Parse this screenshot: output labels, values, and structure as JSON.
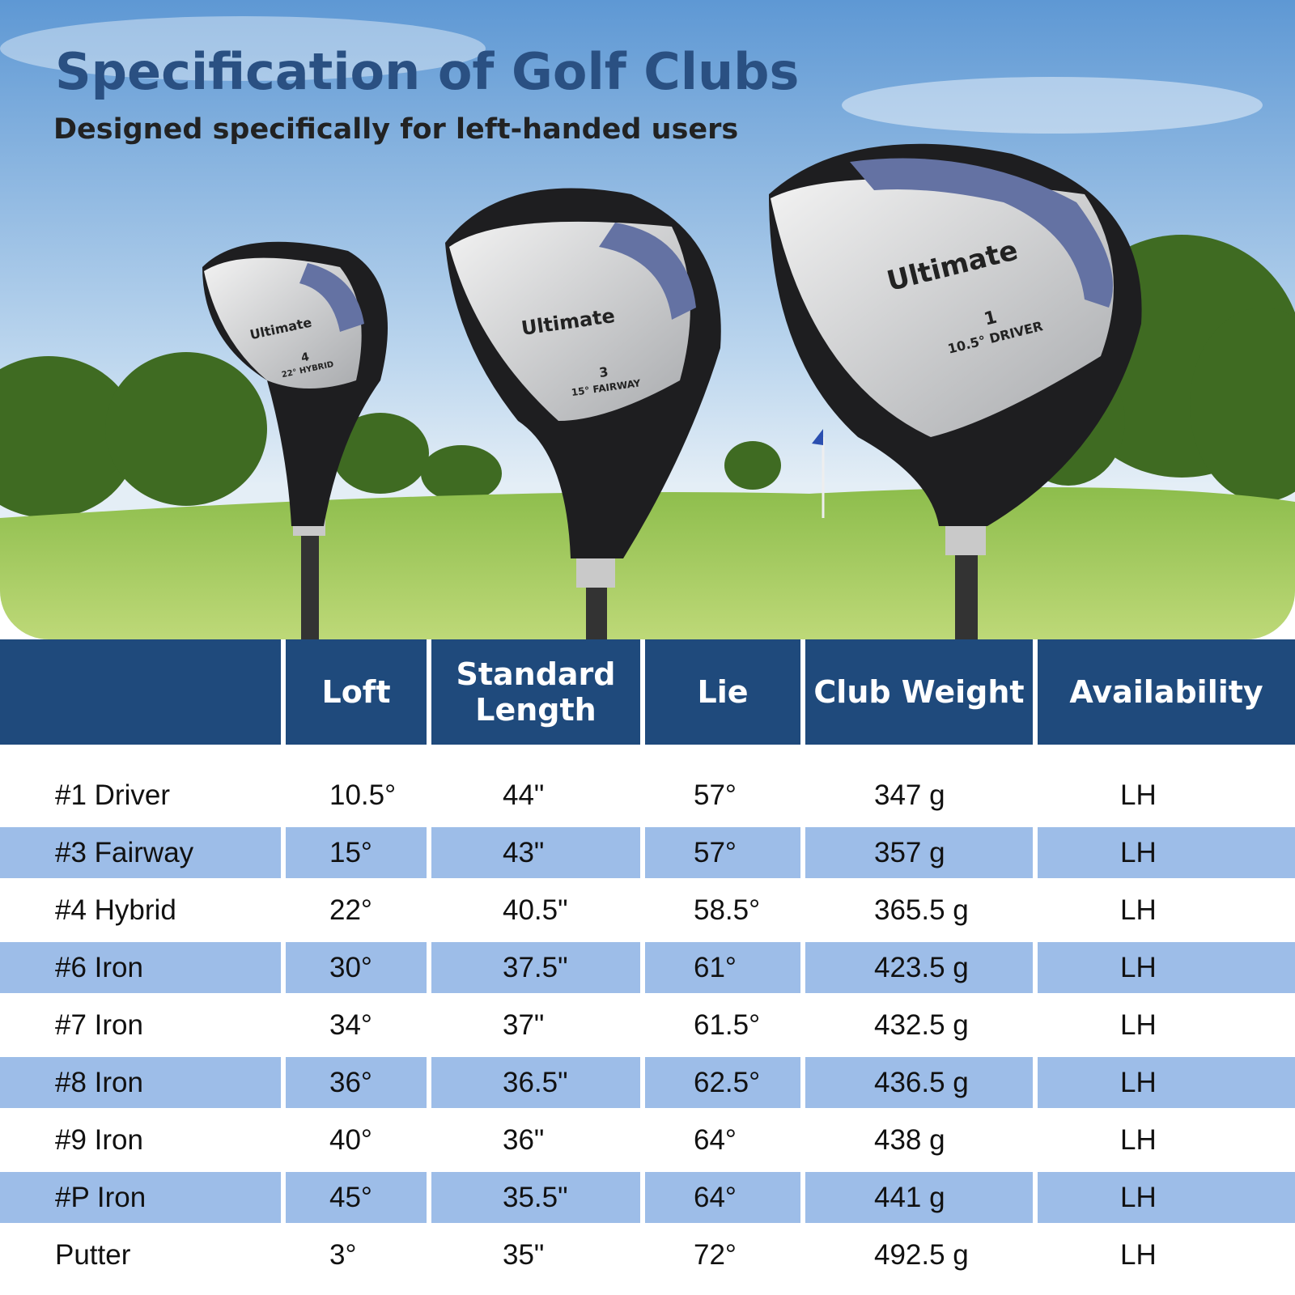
{
  "header": {
    "title": "Specification of Golf Clubs",
    "subtitle": "Designed specifically for left-handed users"
  },
  "clubs": [
    {
      "brand": "Ultimate",
      "number": "4",
      "model": "22° HYBRID"
    },
    {
      "brand": "Ultimate",
      "number": "3",
      "model": "15° FAIRWAY"
    },
    {
      "brand": "Ultimate",
      "number": "1",
      "model": "10.5° DRIVER"
    }
  ],
  "table": {
    "columns": [
      "Loft",
      "Standard Length",
      "Lie",
      "Club Weight",
      "Availability"
    ],
    "rows": [
      [
        "#1 Driver",
        "10.5°",
        "44\"",
        "57°",
        "347 g",
        "LH"
      ],
      [
        "#3 Fairway",
        "15°",
        "43\"",
        "57°",
        "357 g",
        "LH"
      ],
      [
        "#4 Hybrid",
        "22°",
        "40.5\"",
        "58.5°",
        "365.5 g",
        "LH"
      ],
      [
        "#6 Iron",
        "30°",
        "37.5\"",
        "61°",
        "423.5 g",
        "LH"
      ],
      [
        "#7 Iron",
        "34°",
        "37\"",
        "61.5°",
        "432.5 g",
        "LH"
      ],
      [
        "#8 Iron",
        "36°",
        "36.5\"",
        "62.5°",
        "436.5 g",
        "LH"
      ],
      [
        "#9 Iron",
        "40°",
        "36\"",
        "64°",
        "438 g",
        "LH"
      ],
      [
        "#P Iron",
        "45°",
        "35.5\"",
        "64°",
        "441 g",
        "LH"
      ],
      [
        "Putter",
        "3°",
        "35\"",
        "72°",
        "492.5 g",
        "LH"
      ]
    ]
  }
}
